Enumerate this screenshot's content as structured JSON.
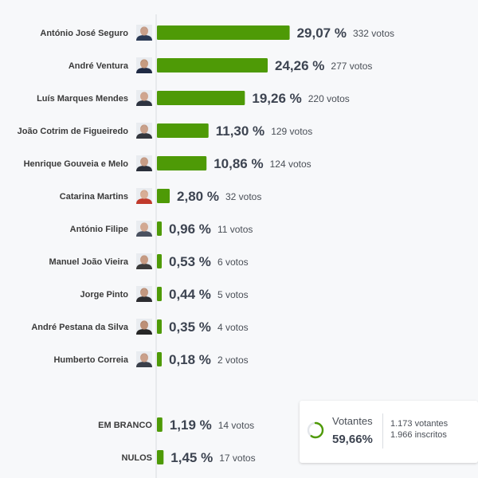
{
  "chart_data": {
    "type": "bar",
    "orientation": "horizontal",
    "unit": "%",
    "bar_color": "#4e9a06",
    "series": [
      {
        "name": "António José Seguro",
        "percent": "29,07 %",
        "value": 29.07,
        "votes": "332 votos",
        "skin": "#c9a08a",
        "hair": "#6d6d6d",
        "cloth": "#2b3a55"
      },
      {
        "name": "André Ventura",
        "percent": "24,26 %",
        "value": 24.26,
        "votes": "277 votos",
        "skin": "#c69b80",
        "hair": "#2e2520",
        "cloth": "#1f2a44"
      },
      {
        "name": "Luís Marques Mendes",
        "percent": "19,26 %",
        "value": 19.26,
        "votes": "220 votos",
        "skin": "#d0a58e",
        "hair": "#9a9a9a",
        "cloth": "#2d3340"
      },
      {
        "name": "João Cotrim de Figueiredo",
        "percent": "11,30 %",
        "value": 11.3,
        "votes": "129 votos",
        "skin": "#c9a08a",
        "hair": "#5a5047",
        "cloth": "#33363d"
      },
      {
        "name": "Henrique Gouveia e Melo",
        "percent": "10,86 %",
        "value": 10.86,
        "votes": "124 votos",
        "skin": "#c79d86",
        "hair": "#7a7a7a",
        "cloth": "#2a2f3a"
      },
      {
        "name": "Catarina Martins",
        "percent": "2,80 %",
        "value": 2.8,
        "votes": "32 votos",
        "skin": "#d8ae96",
        "hair": "#8a4a2a",
        "cloth": "#c0392b"
      },
      {
        "name": "António Filipe",
        "percent": "0,96 %",
        "value": 0.96,
        "votes": "11 votos",
        "skin": "#d2a892",
        "hair": "#b0b0b0",
        "cloth": "#4a5160"
      },
      {
        "name": "Manuel João Vieira",
        "percent": "0,53 %",
        "value": 0.53,
        "votes": "6 votos",
        "skin": "#c69a82",
        "hair": "#8c8c8c",
        "cloth": "#3b3b3b"
      },
      {
        "name": "Jorge Pinto",
        "percent": "0,44 %",
        "value": 0.44,
        "votes": "5 votos",
        "skin": "#c39880",
        "hair": "#2b2220",
        "cloth": "#2c2c30"
      },
      {
        "name": "André Pestana da Silva",
        "percent": "0,35 %",
        "value": 0.35,
        "votes": "4 votos",
        "skin": "#bd9078",
        "hair": "#2a2420",
        "cloth": "#262626"
      },
      {
        "name": "Humberto Correia",
        "percent": "0,18 %",
        "value": 0.18,
        "votes": "2 votos",
        "skin": "#caa08a",
        "hair": "#5e5e5e",
        "cloth": "#3a3f4a"
      }
    ],
    "extra": [
      {
        "name": "EM BRANCO",
        "percent": "1,19 %",
        "value": 1.19,
        "votes": "14 votos"
      },
      {
        "name": "NULOS",
        "percent": "1,45 %",
        "value": 1.45,
        "votes": "17 votos"
      }
    ]
  },
  "summary": {
    "label": "Votantes",
    "percent": "59,66%",
    "turnout": 0.5966,
    "voters": "1.173 votantes",
    "registered": "1.966 inscritos",
    "ring_color": "#4e9a06"
  }
}
